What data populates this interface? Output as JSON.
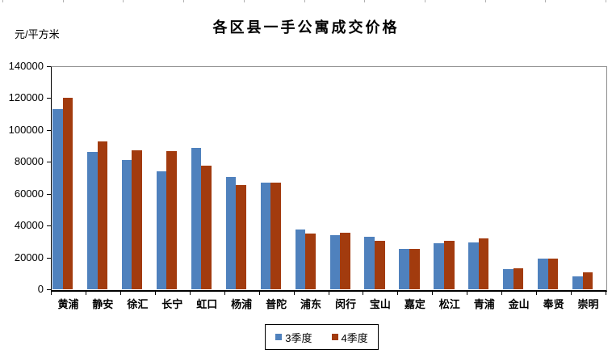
{
  "chart_data": {
    "type": "bar",
    "title": "各区县一手公寓成交价格",
    "unit_label": "元/平方米",
    "categories": [
      "黄浦",
      "静安",
      "徐汇",
      "长宁",
      "虹口",
      "杨浦",
      "普陀",
      "浦东",
      "闵行",
      "宝山",
      "嘉定",
      "松江",
      "青浦",
      "金山",
      "奉贤",
      "崇明"
    ],
    "series": [
      {
        "name": "3季度",
        "color": "#4F81BD",
        "values": [
          113000,
          86000,
          81000,
          74000,
          89000,
          70500,
          67000,
          37500,
          34000,
          33000,
          25500,
          29000,
          29500,
          12500,
          19500,
          8000
        ]
      },
      {
        "name": "4季度",
        "color": "#A23B0E",
        "values": [
          120000,
          93000,
          87000,
          86500,
          77500,
          65500,
          67000,
          35000,
          35500,
          30500,
          25500,
          30500,
          32000,
          13000,
          19500,
          10500
        ]
      }
    ],
    "y_axis": {
      "min": 0,
      "max": 140000,
      "step": 20000,
      "tick_labels": [
        "0",
        "20000",
        "40000",
        "60000",
        "80000",
        "100000",
        "120000",
        "140000"
      ]
    },
    "x_axis_label": "",
    "legend": {
      "position": "bottom-center",
      "entries": [
        "3季度",
        "4季度"
      ]
    },
    "grid": false,
    "axis_color": "#000000",
    "plot_border_color": "#8C8C8C",
    "background_color": "#FFFFFF"
  }
}
